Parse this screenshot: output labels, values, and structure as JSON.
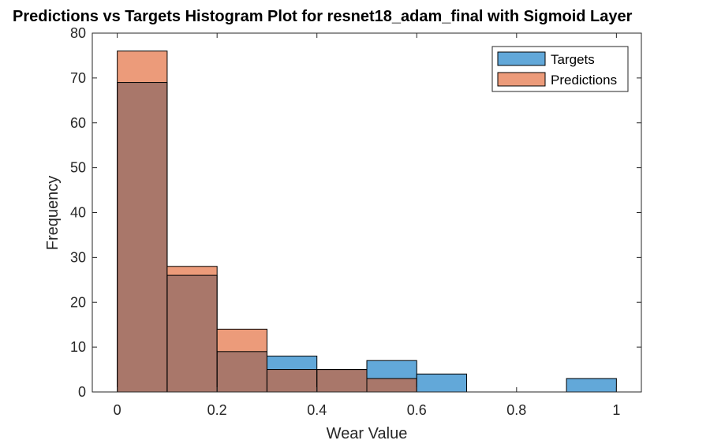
{
  "chart_data": {
    "type": "bar",
    "title": "Predictions vs Targets Histogram Plot for resnet18_adam_final with Sigmoid Layer",
    "xlabel": "Wear Value",
    "ylabel": "Frequency",
    "xlim": [
      -0.05,
      1.05
    ],
    "ylim": [
      0,
      80
    ],
    "xticks": [
      0,
      0.2,
      0.4,
      0.6,
      0.8,
      1
    ],
    "xtick_labels": [
      "0",
      "0.2",
      "0.4",
      "0.6",
      "0.8",
      "1"
    ],
    "yticks": [
      0,
      10,
      20,
      30,
      40,
      50,
      60,
      70,
      80
    ],
    "ytick_labels": [
      "0",
      "10",
      "20",
      "30",
      "40",
      "50",
      "60",
      "70",
      "80"
    ],
    "bin_edges": [
      0,
      0.1,
      0.2,
      0.3,
      0.4,
      0.5,
      0.6,
      0.7,
      0.8,
      0.9,
      1.0
    ],
    "legend_position": "top-right",
    "grid": false,
    "series": [
      {
        "name": "Targets",
        "color": "#0072BD",
        "face_color": "#62A8D9",
        "values": [
          69,
          26,
          9,
          8,
          5,
          7,
          4,
          0,
          0,
          3
        ]
      },
      {
        "name": "Predictions",
        "color": "#D95319",
        "face_color": "#EC9B7A",
        "values": [
          76,
          28,
          14,
          5,
          5,
          3,
          0,
          0,
          0,
          0
        ]
      }
    ],
    "overlap_color": "#A9776A"
  }
}
